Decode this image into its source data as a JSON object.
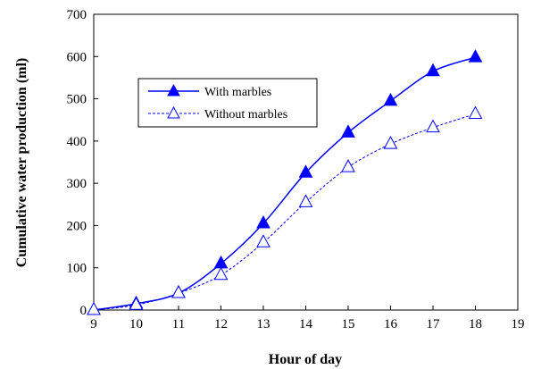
{
  "chart_data": {
    "type": "line",
    "xlabel": "Hour of day",
    "ylabel": "Cumulative water production (ml)",
    "xlim": [
      9,
      19
    ],
    "ylim": [
      0,
      700
    ],
    "xticks": [
      "9",
      "10",
      "11",
      "12",
      "13",
      "14",
      "15",
      "16",
      "17",
      "18",
      "19"
    ],
    "yticks": [
      "0",
      "100",
      "200",
      "300",
      "400",
      "500",
      "600",
      "700"
    ],
    "grid": false,
    "legend_position": "top-left",
    "series": [
      {
        "name": "With marbles",
        "color": "#0000ff",
        "line_style": "solid",
        "marker": "filled-triangle",
        "x": [
          9,
          10,
          11,
          12,
          13,
          14,
          15,
          16,
          17,
          18
        ],
        "y": [
          0,
          15,
          40,
          110,
          205,
          325,
          420,
          495,
          565,
          598
        ]
      },
      {
        "name": "Without marbles",
        "color": "#0000ff",
        "line_style": "dashed",
        "marker": "open-triangle",
        "x": [
          9,
          10,
          11,
          12,
          13,
          14,
          15,
          16,
          17,
          18
        ],
        "y": [
          0,
          12,
          40,
          83,
          160,
          255,
          338,
          393,
          432,
          464
        ]
      }
    ]
  }
}
